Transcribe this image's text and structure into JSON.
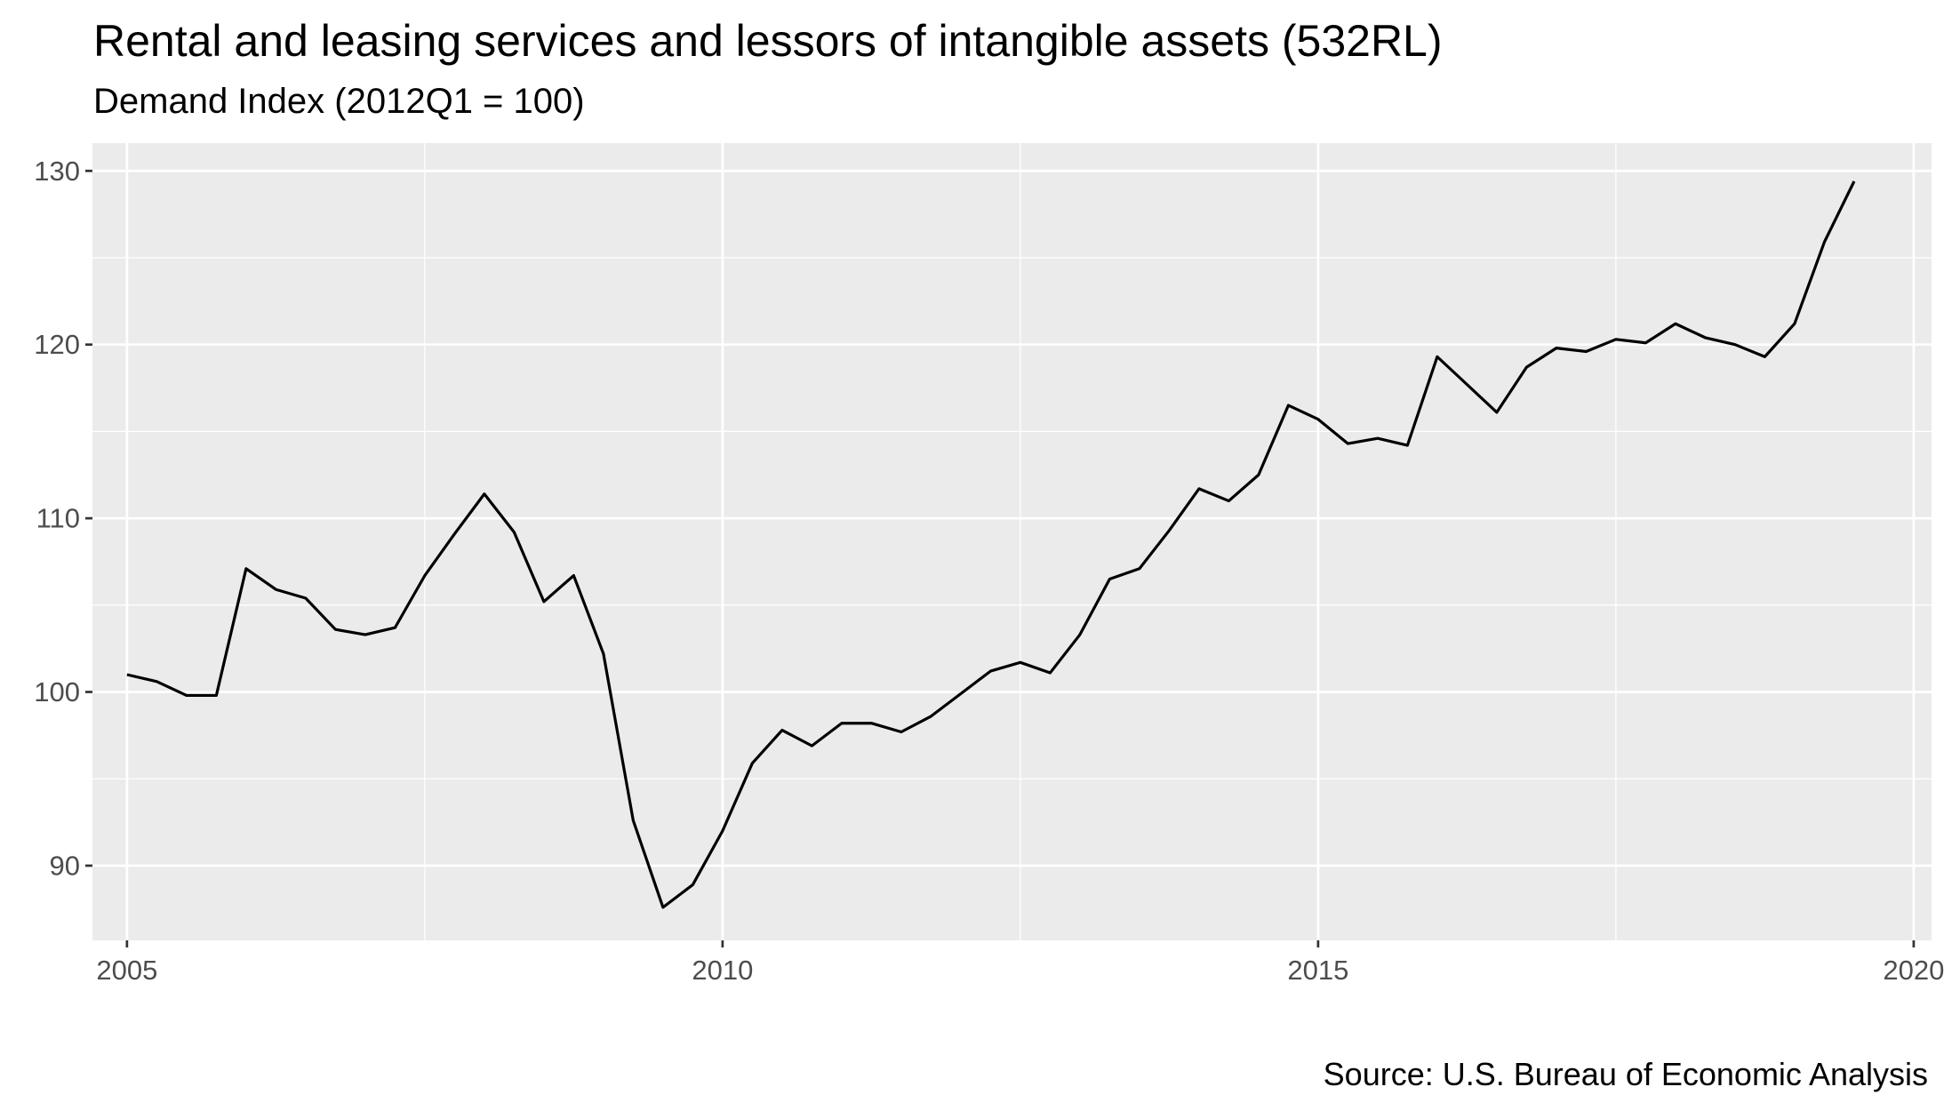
{
  "chart_data": {
    "type": "line",
    "title": "Rental and leasing services and lessors of intangible assets (532RL)",
    "subtitle": "Demand Index (2012Q1 = 100)",
    "caption": "Source: U.S. Bureau of Economic Analysis",
    "xlabel": "",
    "ylabel": "",
    "xlim": [
      2004.71,
      2020.15
    ],
    "ylim": [
      85.7,
      131.6
    ],
    "x_ticks": [
      2005,
      2010,
      2015,
      2020
    ],
    "y_ticks": [
      90,
      100,
      110,
      120,
      130
    ],
    "grid": true,
    "legend": "none",
    "colors": {
      "panel_background": "#ebebeb",
      "grid_line": "#ffffff",
      "series_line": "#000000",
      "tick_text": "#4d4d4d",
      "tick_mark": "#333333"
    },
    "series": [
      {
        "x": [
          2005.0,
          2005.25,
          2005.5,
          2005.75,
          2006.0,
          2006.25,
          2006.5,
          2006.75,
          2007.0,
          2007.25,
          2007.5,
          2007.75,
          2008.0,
          2008.25,
          2008.5,
          2008.75,
          2009.0,
          2009.25,
          2009.5,
          2009.75,
          2010.0,
          2010.25,
          2010.5,
          2010.75,
          2011.0,
          2011.25,
          2011.5,
          2011.75,
          2012.0,
          2012.25,
          2012.5,
          2012.75,
          2013.0,
          2013.25,
          2013.5,
          2013.75,
          2014.0,
          2014.25,
          2014.5,
          2014.75,
          2015.0,
          2015.25,
          2015.5,
          2015.75,
          2016.0,
          2016.25,
          2016.5,
          2016.75,
          2017.0,
          2017.25,
          2017.5,
          2017.75,
          2018.0,
          2018.25,
          2018.5,
          2018.75,
          2019.0,
          2019.25,
          2019.5
        ],
        "values": [
          101.0,
          100.6,
          99.8,
          99.8,
          107.1,
          105.9,
          105.4,
          103.6,
          103.3,
          103.7,
          106.7,
          109.1,
          111.4,
          109.2,
          105.2,
          106.7,
          102.2,
          92.6,
          87.6,
          88.9,
          92.0,
          95.9,
          97.8,
          96.9,
          98.2,
          98.2,
          97.7,
          98.6,
          99.9,
          101.2,
          101.7,
          101.1,
          103.3,
          106.5,
          107.1,
          109.3,
          111.7,
          111.0,
          112.5,
          116.5,
          115.7,
          114.3,
          114.6,
          114.2,
          119.3,
          117.7,
          116.1,
          118.7,
          119.8,
          119.6,
          120.3,
          120.1,
          121.2,
          120.4,
          120.0,
          119.3,
          121.2,
          125.9,
          129.4
        ]
      }
    ]
  }
}
